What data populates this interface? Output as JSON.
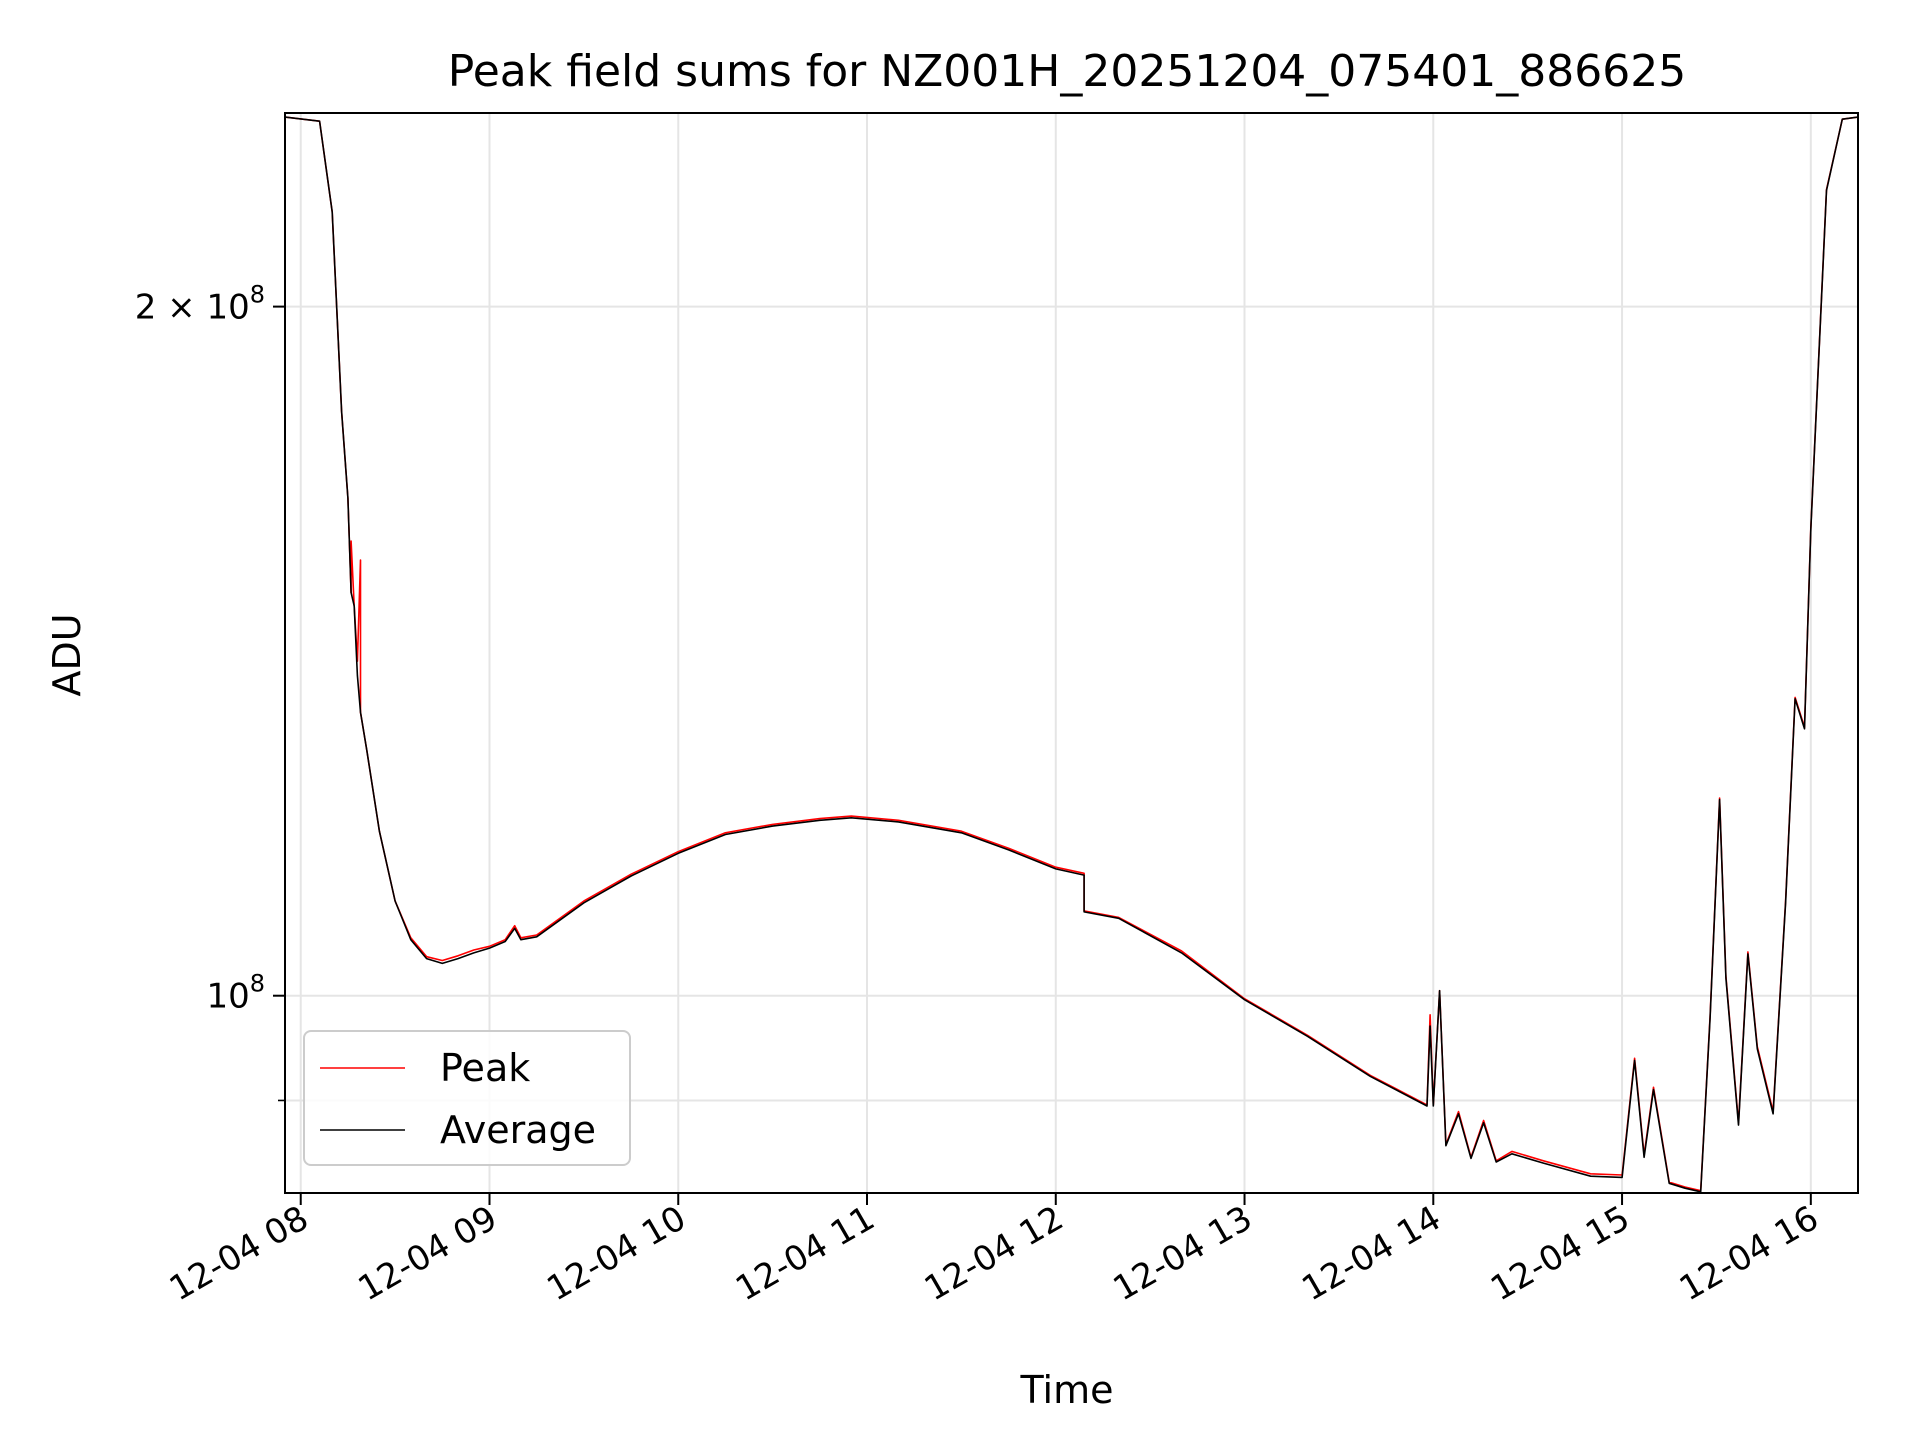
{
  "chart_data": {
    "type": "line",
    "title": "Peak field sums for NZ001H_20251204_075401_886625",
    "xlabel": "Time",
    "ylabel": "ADU",
    "y_scale": "log",
    "x_range": [
      "12-04 07:55",
      "12-04 16:15"
    ],
    "ylim": [
      82000000,
      243000000
    ],
    "x_ticks": [
      {
        "label": "12-04 08",
        "hour": 8
      },
      {
        "label": "12-04 09",
        "hour": 9
      },
      {
        "label": "12-04 10",
        "hour": 10
      },
      {
        "label": "12-04 11",
        "hour": 11
      },
      {
        "label": "12-04 12",
        "hour": 12
      },
      {
        "label": "12-04 13",
        "hour": 13
      },
      {
        "label": "12-04 14",
        "hour": 14
      },
      {
        "label": "12-04 15",
        "hour": 15
      },
      {
        "label": "12-04 16",
        "hour": 16
      }
    ],
    "y_ticks": [
      {
        "label_base": "2 × 10",
        "label_exp": "8",
        "value": 200000000
      },
      {
        "label_base": "10",
        "label_exp": "8",
        "value": 100000000
      }
    ],
    "grid": true,
    "legend_position": "lower-left",
    "series": [
      {
        "name": "Peak",
        "color": "#ff0000",
        "points": [
          [
            "12-04 07:55",
            242000000
          ],
          [
            "12-04 08:06",
            241000000
          ],
          [
            "12-04 08:10",
            220000000
          ],
          [
            "12-04 08:13",
            180000000
          ],
          [
            "12-04 08:15",
            165000000
          ],
          [
            "12-04 08:16",
            150000000
          ],
          [
            "12-04 08:16",
            158000000
          ],
          [
            "12-04 08:17",
            148000000
          ],
          [
            "12-04 08:18",
            140000000
          ],
          [
            "12-04 08:19",
            155000000
          ],
          [
            "12-04 08:19",
            133000000
          ],
          [
            "12-04 08:21",
            128000000
          ],
          [
            "12-04 08:25",
            118000000
          ],
          [
            "12-04 08:30",
            110000000
          ],
          [
            "12-04 08:35",
            106000000
          ],
          [
            "12-04 08:40",
            104000000
          ],
          [
            "12-04 08:45",
            103600000
          ],
          [
            "12-04 08:50",
            104100000
          ],
          [
            "12-04 08:55",
            104700000
          ],
          [
            "12-04 09:00",
            105100000
          ],
          [
            "12-04 09:05",
            105800000
          ],
          [
            "12-04 09:08",
            107300000
          ],
          [
            "12-04 09:10",
            106000000
          ],
          [
            "12-04 09:15",
            106300000
          ],
          [
            "12-04 09:30",
            110000000
          ],
          [
            "12-04 09:45",
            113000000
          ],
          [
            "12-04 10:00",
            115600000
          ],
          [
            "12-04 10:15",
            117800000
          ],
          [
            "12-04 10:30",
            118800000
          ],
          [
            "12-04 10:45",
            119500000
          ],
          [
            "12-04 10:55",
            119800000
          ],
          [
            "12-04 11:10",
            119300000
          ],
          [
            "12-04 11:30",
            118000000
          ],
          [
            "12-04 11:45",
            116000000
          ],
          [
            "12-04 12:00",
            113800000
          ],
          [
            "12-04 12:09",
            113100000
          ],
          [
            "12-04 12:09",
            108900000
          ],
          [
            "12-04 12:20",
            108200000
          ],
          [
            "12-04 12:40",
            104600000
          ],
          [
            "12-04 13:00",
            99700000
          ],
          [
            "12-04 13:20",
            96100000
          ],
          [
            "12-04 13:40",
            92300000
          ],
          [
            "12-04 13:58",
            89600000
          ],
          [
            "12-04 13:59",
            98100000
          ],
          [
            "12-04 14:00",
            89600000
          ],
          [
            "12-04 14:02",
            100500000
          ],
          [
            "12-04 14:04",
            86100000
          ],
          [
            "12-04 14:08",
            89000000
          ],
          [
            "12-04 14:12",
            85000000
          ],
          [
            "12-04 14:16",
            88200000
          ],
          [
            "12-04 14:20",
            84700000
          ],
          [
            "12-04 14:25",
            85500000
          ],
          [
            "12-04 14:35",
            84700000
          ],
          [
            "12-04 14:50",
            83600000
          ],
          [
            "12-04 15:00",
            83500000
          ],
          [
            "12-04 15:04",
            93900000
          ],
          [
            "12-04 15:07",
            85200000
          ],
          [
            "12-04 15:10",
            91200000
          ],
          [
            "12-04 15:15",
            82900000
          ],
          [
            "12-04 15:20",
            82500000
          ],
          [
            "12-04 15:25",
            82200000
          ],
          [
            "12-04 15:28",
            98000000
          ],
          [
            "12-04 15:31",
            122000000
          ],
          [
            "12-04 15:33",
            102000000
          ],
          [
            "12-04 15:37",
            88000000
          ],
          [
            "12-04 15:40",
            104500000
          ],
          [
            "12-04 15:43",
            95000000
          ],
          [
            "12-04 15:48",
            89000000
          ],
          [
            "12-04 15:52",
            110000000
          ],
          [
            "12-04 15:55",
            135000000
          ],
          [
            "12-04 15:58",
            131000000
          ],
          [
            "12-04 16:00",
            160000000
          ],
          [
            "12-04 16:05",
            225000000
          ],
          [
            "12-04 16:10",
            241500000
          ],
          [
            "12-04 16:15",
            242000000
          ]
        ]
      },
      {
        "name": "Average",
        "color": "#000000",
        "points": [
          [
            "12-04 07:55",
            242000000
          ],
          [
            "12-04 08:06",
            241000000
          ],
          [
            "12-04 08:10",
            220000000
          ],
          [
            "12-04 08:13",
            180000000
          ],
          [
            "12-04 08:15",
            165000000
          ],
          [
            "12-04 08:16",
            150000000
          ],
          [
            "12-04 08:17",
            148000000
          ],
          [
            "12-04 08:18",
            138000000
          ],
          [
            "12-04 08:19",
            133000000
          ],
          [
            "12-04 08:21",
            128000000
          ],
          [
            "12-04 08:25",
            118000000
          ],
          [
            "12-04 08:30",
            110000000
          ],
          [
            "12-04 08:35",
            105800000
          ],
          [
            "12-04 08:40",
            103800000
          ],
          [
            "12-04 08:45",
            103300000
          ],
          [
            "12-04 08:50",
            103800000
          ],
          [
            "12-04 08:55",
            104400000
          ],
          [
            "12-04 09:00",
            104900000
          ],
          [
            "12-04 09:05",
            105600000
          ],
          [
            "12-04 09:08",
            107000000
          ],
          [
            "12-04 09:10",
            105800000
          ],
          [
            "12-04 09:15",
            106100000
          ],
          [
            "12-04 09:30",
            109800000
          ],
          [
            "12-04 09:45",
            112800000
          ],
          [
            "12-04 10:00",
            115400000
          ],
          [
            "12-04 10:15",
            117600000
          ],
          [
            "12-04 10:30",
            118600000
          ],
          [
            "12-04 10:45",
            119300000
          ],
          [
            "12-04 10:55",
            119600000
          ],
          [
            "12-04 11:10",
            119100000
          ],
          [
            "12-04 11:30",
            117800000
          ],
          [
            "12-04 11:45",
            115800000
          ],
          [
            "12-04 12:00",
            113600000
          ],
          [
            "12-04 12:09",
            112900000
          ],
          [
            "12-04 12:09",
            108800000
          ],
          [
            "12-04 12:20",
            108100000
          ],
          [
            "12-04 12:40",
            104400000
          ],
          [
            "12-04 13:00",
            99600000
          ],
          [
            "12-04 13:20",
            96000000
          ],
          [
            "12-04 13:40",
            92200000
          ],
          [
            "12-04 13:58",
            89500000
          ],
          [
            "12-04 13:59",
            97000000
          ],
          [
            "12-04 14:00",
            89500000
          ],
          [
            "12-04 14:02",
            100500000
          ],
          [
            "12-04 14:04",
            86000000
          ],
          [
            "12-04 14:08",
            88800000
          ],
          [
            "12-04 14:12",
            84900000
          ],
          [
            "12-04 14:16",
            88000000
          ],
          [
            "12-04 14:20",
            84600000
          ],
          [
            "12-04 14:25",
            85300000
          ],
          [
            "12-04 14:35",
            84500000
          ],
          [
            "12-04 14:50",
            83400000
          ],
          [
            "12-04 15:00",
            83300000
          ],
          [
            "12-04 15:04",
            93700000
          ],
          [
            "12-04 15:07",
            85000000
          ],
          [
            "12-04 15:10",
            91000000
          ],
          [
            "12-04 15:15",
            82800000
          ],
          [
            "12-04 15:20",
            82400000
          ],
          [
            "12-04 15:25",
            82100000
          ],
          [
            "12-04 15:28",
            97800000
          ],
          [
            "12-04 15:31",
            121800000
          ],
          [
            "12-04 15:33",
            101800000
          ],
          [
            "12-04 15:37",
            87800000
          ],
          [
            "12-04 15:40",
            104300000
          ],
          [
            "12-04 15:43",
            94800000
          ],
          [
            "12-04 15:48",
            88800000
          ],
          [
            "12-04 15:52",
            109800000
          ],
          [
            "12-04 15:55",
            134800000
          ],
          [
            "12-04 15:58",
            130800000
          ],
          [
            "12-04 16:00",
            159800000
          ],
          [
            "12-04 16:05",
            224800000
          ],
          [
            "12-04 16:10",
            241500000
          ],
          [
            "12-04 16:15",
            242000000
          ]
        ]
      }
    ]
  }
}
